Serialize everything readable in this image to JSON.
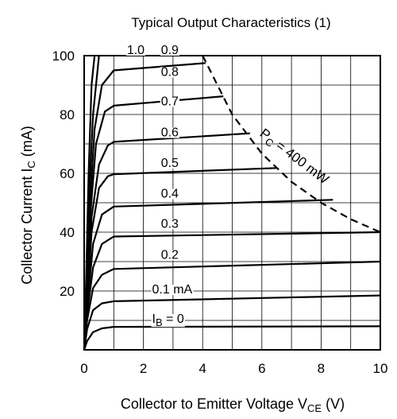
{
  "chart_data": {
    "type": "line",
    "title": "Typical Output Characteristics (1)",
    "xlabel": {
      "main": "Collector to Emitter Voltage  V",
      "sub": "CE",
      "unit": "  (V)"
    },
    "ylabel": {
      "main": "Collector Current  I",
      "sub": "C",
      "unit": "  (mA)"
    },
    "xlim": [
      0,
      10
    ],
    "ylim": [
      0,
      100
    ],
    "x_ticks": [
      0,
      2,
      4,
      6,
      8,
      10
    ],
    "y_ticks": [
      20,
      40,
      60,
      80,
      100
    ],
    "y_tick_labels": [
      "20",
      "40",
      "60",
      "80",
      "100"
    ],
    "x_tick_labels": [
      "0",
      "2",
      "4",
      "6",
      "8",
      "10"
    ],
    "grid": true,
    "series": [
      {
        "name": "I_B = 0",
        "label_main": "I",
        "label_sub": "B",
        "label_tail": " = 0",
        "points": [
          [
            0,
            0
          ],
          [
            0.1,
            3
          ],
          [
            0.3,
            6
          ],
          [
            0.6,
            7.3
          ],
          [
            1,
            7.8
          ],
          [
            10,
            8
          ]
        ]
      },
      {
        "name": "0.1 mA",
        "label_main": "0.1 mA",
        "points": [
          [
            0,
            0
          ],
          [
            0.1,
            7
          ],
          [
            0.3,
            13.5
          ],
          [
            0.6,
            15.8
          ],
          [
            1,
            16.5
          ],
          [
            10,
            18.5
          ]
        ]
      },
      {
        "name": "0.2",
        "label_main": "0.2",
        "points": [
          [
            0,
            0
          ],
          [
            0.1,
            10
          ],
          [
            0.3,
            21
          ],
          [
            0.6,
            25.5
          ],
          [
            1,
            27.5
          ],
          [
            10,
            30
          ]
        ]
      },
      {
        "name": "0.3",
        "label_main": "0.3",
        "points": [
          [
            0,
            0
          ],
          [
            0.1,
            12
          ],
          [
            0.3,
            28
          ],
          [
            0.6,
            36
          ],
          [
            1,
            38.5
          ],
          [
            10,
            40
          ]
        ]
      },
      {
        "name": "0.4",
        "label_main": "0.4",
        "points": [
          [
            0,
            0
          ],
          [
            0.1,
            14
          ],
          [
            0.3,
            36
          ],
          [
            0.6,
            46
          ],
          [
            1,
            48.7
          ],
          [
            8.4,
            51
          ]
        ]
      },
      {
        "name": "0.5",
        "label_main": "0.5",
        "points": [
          [
            0,
            0
          ],
          [
            0.1,
            15
          ],
          [
            0.25,
            40
          ],
          [
            0.5,
            55
          ],
          [
            0.8,
            59
          ],
          [
            1,
            59.7
          ],
          [
            6.5,
            61.8
          ]
        ]
      },
      {
        "name": "0.6",
        "label_main": "0.6",
        "points": [
          [
            0,
            0
          ],
          [
            0.1,
            16
          ],
          [
            0.25,
            45
          ],
          [
            0.5,
            63
          ],
          [
            0.8,
            69.5
          ],
          [
            1,
            70.7
          ],
          [
            5.6,
            73.6
          ]
        ]
      },
      {
        "name": "0.7",
        "label_main": "0.7",
        "points": [
          [
            0,
            0
          ],
          [
            0.1,
            18
          ],
          [
            0.2,
            45
          ],
          [
            0.4,
            70
          ],
          [
            0.7,
            81
          ],
          [
            1,
            83
          ],
          [
            4.7,
            86.2
          ]
        ]
      },
      {
        "name": "0.8",
        "label_main": "0.8",
        "points": [
          [
            0,
            0
          ],
          [
            0.1,
            20
          ],
          [
            0.2,
            50
          ],
          [
            0.35,
            75
          ],
          [
            0.6,
            90
          ],
          [
            1,
            95
          ],
          [
            4.1,
            97.5
          ]
        ]
      },
      {
        "name": "0.9",
        "label_main": "0.9",
        "points": [
          [
            0,
            0
          ],
          [
            0.08,
            22
          ],
          [
            0.18,
            55
          ],
          [
            0.3,
            80
          ],
          [
            0.5,
            100
          ]
        ]
      },
      {
        "name": "1.0",
        "label_main": "1.0",
        "points": [
          [
            0,
            0
          ],
          [
            0.07,
            25
          ],
          [
            0.15,
            60
          ],
          [
            0.25,
            90
          ],
          [
            0.35,
            100
          ]
        ]
      }
    ],
    "power_curve": {
      "label_main": "P",
      "label_sub": "C",
      "label_tail": " = 400 mW",
      "style": "dashed",
      "points": [
        [
          4.0,
          100
        ],
        [
          5.0,
          80
        ],
        [
          6.0,
          66.7
        ],
        [
          7.0,
          57.1
        ],
        [
          8.0,
          50
        ],
        [
          9.0,
          44.4
        ],
        [
          10.0,
          40
        ]
      ]
    }
  }
}
